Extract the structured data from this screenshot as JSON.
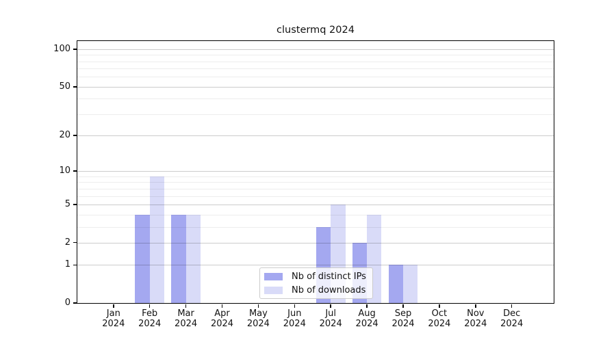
{
  "chart_data": {
    "type": "bar",
    "title": "clustermq 2024",
    "categories": [
      "Jan",
      "Feb",
      "Mar",
      "Apr",
      "May",
      "Jun",
      "Jul",
      "Aug",
      "Sep",
      "Oct",
      "Nov",
      "Dec"
    ],
    "x_year_label": "2024",
    "series": [
      {
        "name": "Nb of distinct IPs",
        "color": "#a4a8f0",
        "values": [
          0,
          4,
          4,
          0,
          0,
          0,
          3,
          2,
          1,
          0,
          0,
          0
        ]
      },
      {
        "name": "Nb of downloads",
        "color": "#d9dbf8",
        "values": [
          0,
          9,
          4,
          0,
          0,
          0,
          5,
          4,
          1,
          0,
          0,
          0
        ]
      }
    ],
    "yscale": "log1p",
    "ylim": [
      0,
      116
    ],
    "y_major_ticks": [
      0,
      1,
      2,
      5,
      10,
      20,
      50,
      100
    ],
    "y_minor_ticks": [
      3,
      4,
      6,
      7,
      8,
      9,
      30,
      40,
      60,
      70,
      80,
      90
    ],
    "grid": "on",
    "legend_position": "lower-center",
    "colors": {
      "major_grid": "#cccccc",
      "minor_grid": "#ededed",
      "spine": "#000000",
      "text": "#111111",
      "legend_border": "#cccccc",
      "legend_background": "rgba(255,255,255,0.8)"
    }
  }
}
